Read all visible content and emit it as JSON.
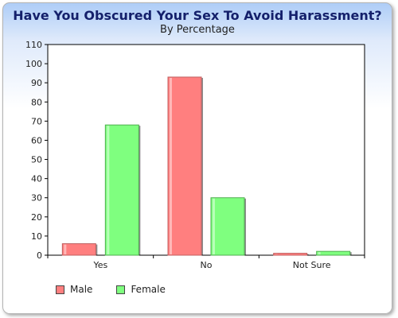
{
  "chart_data": {
    "type": "bar",
    "title": "Have You Obscured Your Sex To Avoid Harassment?",
    "subtitle": "By Percentage",
    "xlabel": "",
    "ylabel": "",
    "categories": [
      "Yes",
      "No",
      "Not Sure"
    ],
    "series": [
      {
        "name": "Male",
        "values": [
          6,
          93,
          1
        ],
        "color": "#ff7f7f"
      },
      {
        "name": "Female",
        "values": [
          68,
          30,
          2
        ],
        "color": "#7fff7f"
      }
    ],
    "ylim": [
      0,
      110
    ],
    "yticks": [
      "0",
      "10",
      "20",
      "30",
      "40",
      "50",
      "60",
      "70",
      "80",
      "90",
      "100",
      "110"
    ],
    "grid": false,
    "legend_position": "bottom-left"
  }
}
